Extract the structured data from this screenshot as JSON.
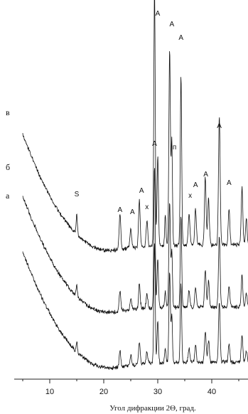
{
  "chart_data": {
    "type": "line",
    "xlabel": "Угол дифракции 2Θ, град.",
    "ylabel": "",
    "xlim": [
      4,
      47
    ],
    "xticks": [
      10,
      20,
      30,
      40
    ],
    "tick_labels": [
      "10",
      "20",
      "30",
      "40"
    ],
    "grid": false,
    "series": [
      {
        "name": "а",
        "id": "a"
      },
      {
        "name": "б",
        "id": "b"
      },
      {
        "name": "в",
        "id": "v"
      }
    ],
    "peak_labels": [
      {
        "text": "S",
        "x": 15.0
      },
      {
        "text": "A",
        "x": 23.0
      },
      {
        "text": "A",
        "x": 25.3
      },
      {
        "text": "A",
        "x": 27.0
      },
      {
        "text": "x",
        "x": 28.0
      },
      {
        "text": "A",
        "x": 29.4
      },
      {
        "text": "A",
        "x": 30.0
      },
      {
        "text": "п",
        "x": 33.1
      },
      {
        "text": "A",
        "x": 32.6
      },
      {
        "text": "A",
        "x": 34.3
      },
      {
        "text": "x",
        "x": 36.0
      },
      {
        "text": "A",
        "x": 37.0
      },
      {
        "text": "A",
        "x": 38.9
      },
      {
        "text": "A",
        "x": 41.4
      },
      {
        "text": "A",
        "x": 43.2
      }
    ]
  }
}
